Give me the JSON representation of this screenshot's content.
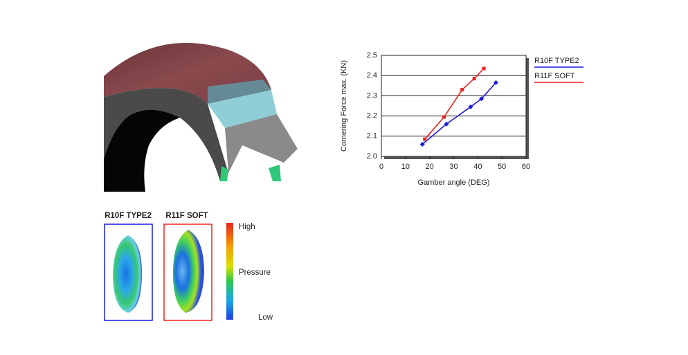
{
  "chart_data": {
    "type": "line",
    "xlabel": "Gamber angle (DEG)",
    "ylabel": "Cornering Force max. (KN)",
    "xlim": [
      0,
      60
    ],
    "xticks": [
      0,
      10,
      20,
      30,
      40,
      50,
      60
    ],
    "ylim": [
      2,
      2.5
    ],
    "yticks": [
      {
        "value": 2,
        "label": "2.0"
      },
      2.1,
      2.2,
      2.3,
      2.4,
      2.5
    ],
    "grid": true,
    "legend": "right",
    "series": [
      {
        "name": "R10F TYPE2",
        "color": "#1a1adb",
        "marker": "diamond",
        "x": [
          17,
          27,
          37,
          41.5,
          47.5
        ],
        "values": [
          2.06,
          2.16,
          2.245,
          2.285,
          2.365
        ]
      },
      {
        "name": "R11F SOFT",
        "color": "#e8231f",
        "marker": "square",
        "x": [
          18,
          26,
          33.5,
          38.5,
          42.5
        ],
        "values": [
          2.085,
          2.195,
          2.33,
          2.385,
          2.435
        ]
      }
    ]
  },
  "pressure_maps": {
    "labels": [
      "R10F TYPE2",
      "R11F SOFT"
    ],
    "scale": {
      "high": "High",
      "middle": "Pressure",
      "low": "Low"
    }
  }
}
